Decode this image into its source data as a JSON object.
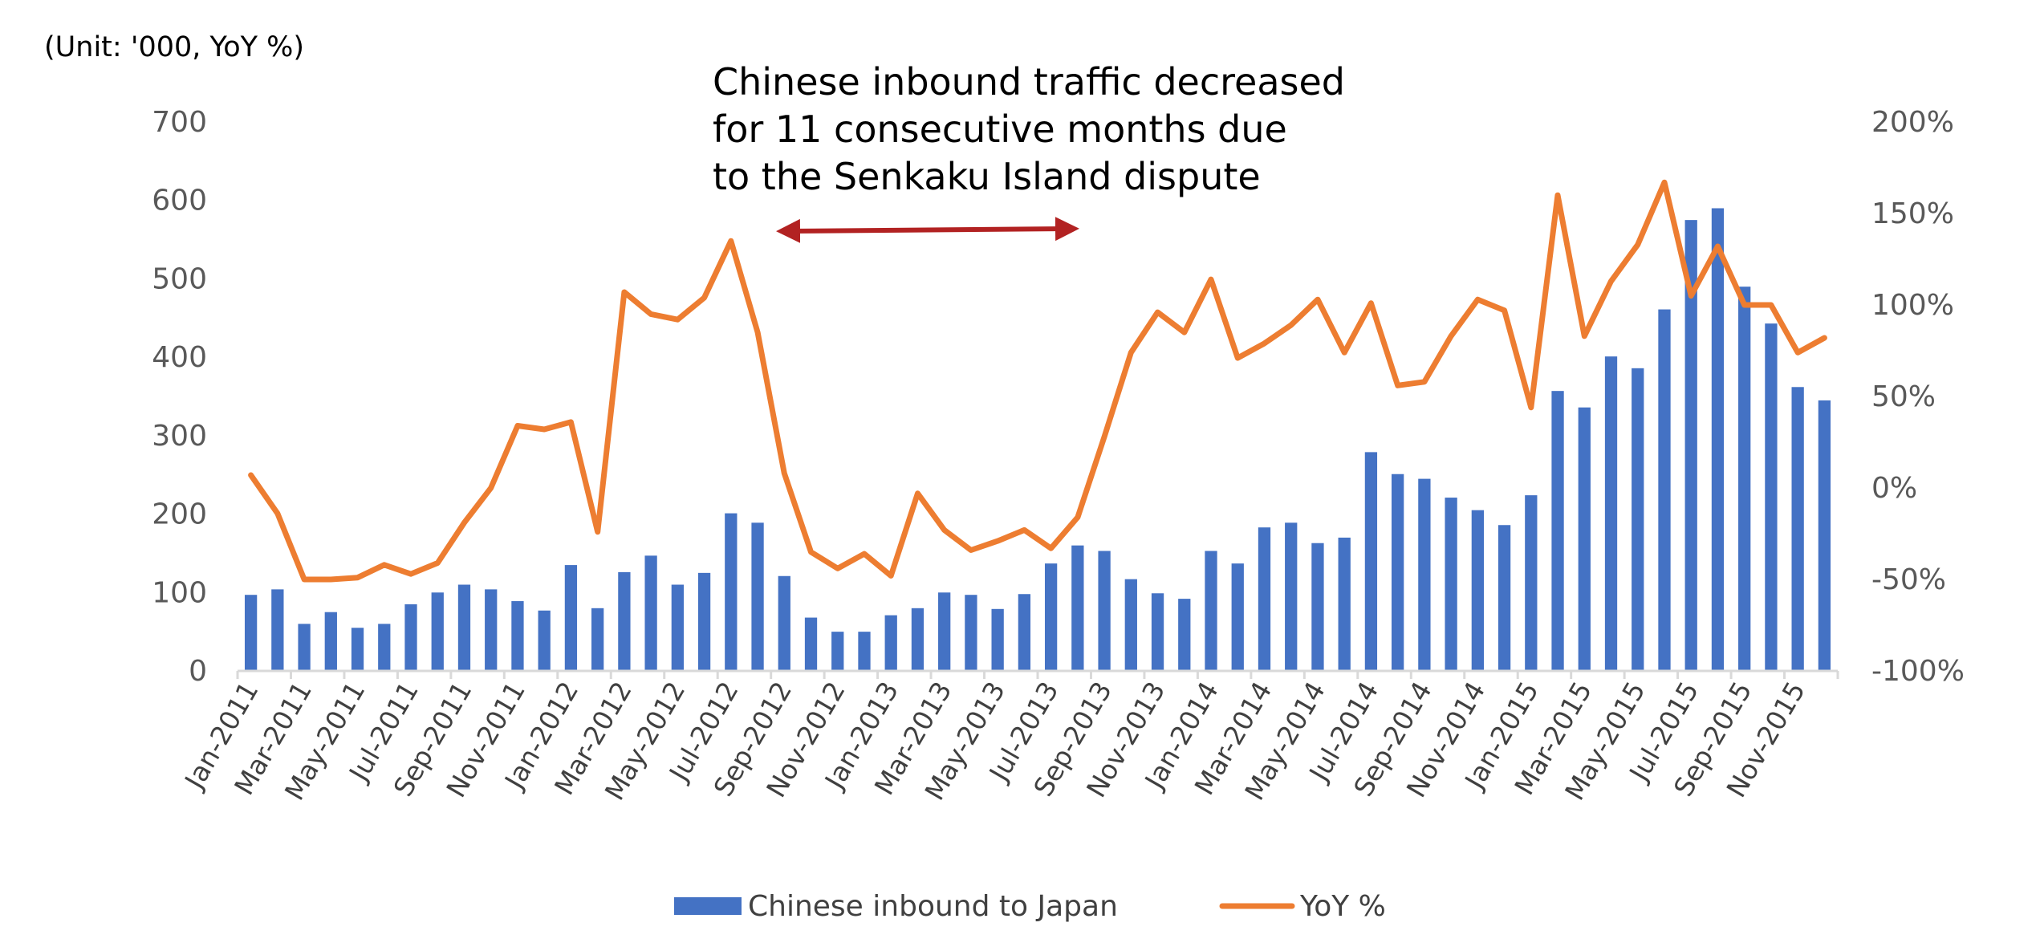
{
  "chart_data": {
    "type": "bar+line",
    "unit_label": "(Unit: '000, YoY %)",
    "annotation": [
      "Chinese inbound traffic decreased",
      "for 11 consecutive months due",
      "to the Senkaku Island dispute"
    ],
    "colors": {
      "bars": "#4472C4",
      "line": "#ED7D31",
      "arrow": "#B22222",
      "axis": "#D9D9D9"
    },
    "categories": [
      "Jan-2011",
      "Feb-2011",
      "Mar-2011",
      "Apr-2011",
      "May-2011",
      "Jun-2011",
      "Jul-2011",
      "Aug-2011",
      "Sep-2011",
      "Oct-2011",
      "Nov-2011",
      "Dec-2011",
      "Jan-2012",
      "Feb-2012",
      "Mar-2012",
      "Apr-2012",
      "May-2012",
      "Jun-2012",
      "Jul-2012",
      "Aug-2012",
      "Sep-2012",
      "Oct-2012",
      "Nov-2012",
      "Dec-2012",
      "Jan-2013",
      "Feb-2013",
      "Mar-2013",
      "Apr-2013",
      "May-2013",
      "Jun-2013",
      "Jul-2013",
      "Aug-2013",
      "Sep-2013",
      "Oct-2013",
      "Nov-2013",
      "Dec-2013",
      "Jan-2014",
      "Feb-2014",
      "Mar-2014",
      "Apr-2014",
      "May-2014",
      "Jun-2014",
      "Jul-2014",
      "Aug-2014",
      "Sep-2014",
      "Oct-2014",
      "Nov-2014",
      "Dec-2014",
      "Jan-2015",
      "Feb-2015",
      "Mar-2015",
      "Apr-2015",
      "May-2015",
      "Jun-2015",
      "Jul-2015",
      "Aug-2015",
      "Sep-2015",
      "Oct-2015",
      "Nov-2015",
      "Dec-2015"
    ],
    "x_tick_labels": [
      "Jan-2011",
      "Mar-2011",
      "May-2011",
      "Jul-2011",
      "Sep-2011",
      "Nov-2011",
      "Jan-2012",
      "Mar-2012",
      "May-2012",
      "Jul-2012",
      "Sep-2012",
      "Nov-2012",
      "Jan-2013",
      "Mar-2013",
      "May-2013",
      "Jul-2013",
      "Sep-2013",
      "Nov-2013",
      "Jan-2014",
      "Mar-2014",
      "May-2014",
      "Jul-2014",
      "Sep-2014",
      "Nov-2014",
      "Jan-2015",
      "Mar-2015",
      "May-2015",
      "Jul-2015",
      "Sep-2015",
      "Nov-2015"
    ],
    "series": [
      {
        "name": "Chinese inbound to Japan",
        "type": "bar",
        "axis": "left",
        "values": [
          97,
          104,
          60,
          75,
          55,
          60,
          85,
          100,
          110,
          104,
          89,
          77,
          135,
          80,
          126,
          147,
          110,
          125,
          201,
          189,
          121,
          68,
          50,
          50,
          71,
          80,
          100,
          97,
          79,
          98,
          137,
          160,
          153,
          117,
          99,
          92,
          153,
          137,
          183,
          189,
          163,
          170,
          279,
          251,
          245,
          221,
          205,
          186,
          224,
          357,
          336,
          401,
          386,
          461,
          575,
          590,
          490,
          443,
          362,
          345
        ]
      },
      {
        "name": "YoY %",
        "type": "line",
        "axis": "right",
        "values": [
          7,
          -14,
          -50,
          -50,
          -49,
          -42,
          -47,
          -41,
          -19,
          0,
          34,
          32,
          36,
          -24,
          107,
          95,
          92,
          104,
          135,
          85,
          8,
          -35,
          -44,
          -36,
          -48,
          -3,
          -23,
          -34,
          -29,
          -23,
          -33,
          -16,
          28,
          74,
          96,
          85,
          114,
          71,
          79,
          89,
          103,
          74,
          101,
          56,
          58,
          83,
          103,
          97,
          44,
          160,
          83,
          113,
          133,
          167,
          105,
          132,
          100,
          100,
          74,
          82
        ]
      }
    ],
    "y_left": {
      "min": 0,
      "max": 700,
      "step": 100,
      "tick_labels": [
        "0",
        "100",
        "200",
        "300",
        "400",
        "500",
        "600",
        "700"
      ]
    },
    "y_right": {
      "min": -100,
      "max": 200,
      "step": 50,
      "tick_labels": [
        "-100%",
        "-50%",
        "0%",
        "50%",
        "100%",
        "150%",
        "200%"
      ]
    },
    "legend": {
      "position": "bottom",
      "items": [
        {
          "label": "Chinese inbound to Japan",
          "kind": "bar"
        },
        {
          "label": "YoY %",
          "kind": "line"
        }
      ]
    },
    "grid": false
  }
}
